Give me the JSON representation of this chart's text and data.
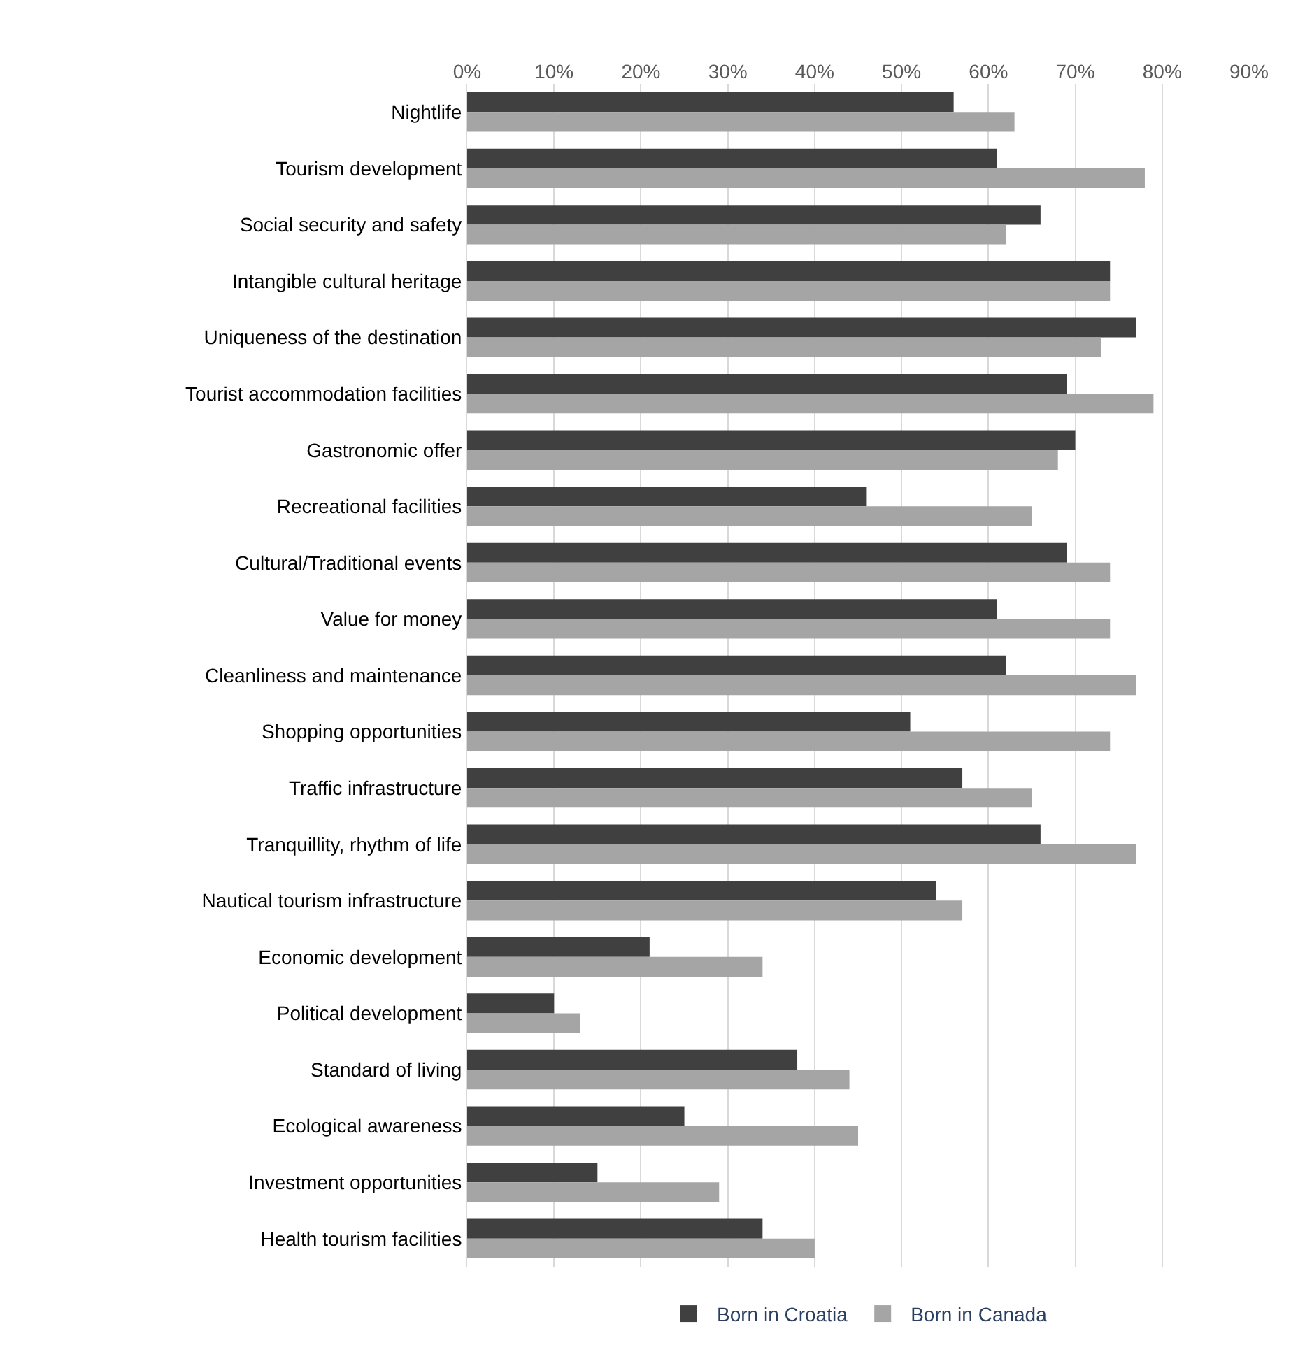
{
  "chart_data": {
    "type": "bar",
    "orientation": "horizontal",
    "categories": [
      "Nightlife",
      "Tourism development",
      "Social security and safety",
      "Intangible cultural heritage",
      "Uniqueness of the destination",
      "Tourist accommodation facilities",
      "Gastronomic offer",
      "Recreational facilities",
      "Cultural/Traditional events",
      "Value for money",
      "Cleanliness and maintenance",
      "Shopping opportunities",
      "Traffic infrastructure",
      "Tranquillity, rhythm of life",
      "Nautical tourism infrastructure",
      "Economic development",
      "Political development",
      "Standard of living",
      "Ecological awareness",
      "Investment opportunities",
      "Health tourism facilities"
    ],
    "series": [
      {
        "name": "Born in Croatia",
        "color": "#404040",
        "values": [
          56,
          61,
          66,
          74,
          77,
          69,
          70,
          46,
          69,
          61,
          62,
          51,
          57,
          66,
          54,
          21,
          10,
          38,
          25,
          15,
          34
        ]
      },
      {
        "name": "Born in Canada",
        "color": "#a5a5a5",
        "values": [
          63,
          78,
          62,
          74,
          73,
          79,
          68,
          65,
          74,
          74,
          77,
          74,
          65,
          77,
          57,
          34,
          13,
          44,
          45,
          29,
          40
        ]
      }
    ],
    "xlim": [
      0,
      90
    ],
    "xticks": [
      {
        "value": 0,
        "label": "0%"
      },
      {
        "value": 10,
        "label": "10%"
      },
      {
        "value": 20,
        "label": "20%"
      },
      {
        "value": 30,
        "label": "30%"
      },
      {
        "value": 40,
        "label": "40%"
      },
      {
        "value": 50,
        "label": "50%"
      },
      {
        "value": 60,
        "label": "60%"
      },
      {
        "value": 70,
        "label": "70%"
      },
      {
        "value": 80,
        "label": "80%"
      },
      {
        "value": 90,
        "label": "90%"
      }
    ],
    "grid": "x",
    "legend": "bottom"
  }
}
